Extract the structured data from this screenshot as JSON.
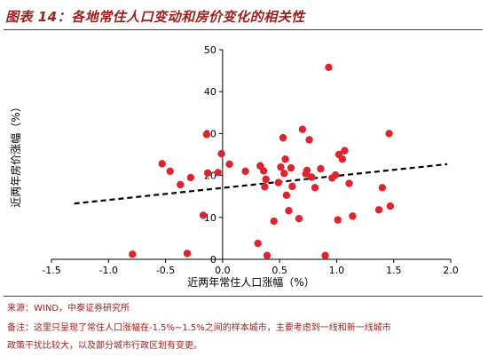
{
  "figure": {
    "title": "图表 14：各地常住人口变动和房价变化的相关性",
    "source": "来源：WIND，中泰证券研究所",
    "note_line1": "备注：这里只呈现了常住人口涨幅在-1.5%~1.5%之间的样本城市，主要考虑到一线和新一线城市",
    "note_line2": "政策干扰比较大，以及部分城市行政区划有变更。"
  },
  "colors": {
    "accent": "#a11e1e",
    "points": "#e0242f",
    "trendline": "#000000",
    "axis": "#000000"
  },
  "chart_data": {
    "type": "scatter",
    "title": "",
    "xlabel": "近两年常住人口涨幅（%）",
    "ylabel": "近两年房价涨幅（%）",
    "xlim": [
      -1.5,
      2.0
    ],
    "ylim": [
      0,
      50
    ],
    "xticks": [
      -1.5,
      -1.0,
      -0.5,
      0.0,
      0.5,
      1.0,
      1.5,
      2.0
    ],
    "xtick_labels": [
      "-1.5",
      "-1.0",
      "-0.5",
      "0.0",
      "0.5",
      "1.0",
      "1.5",
      "2.0"
    ],
    "yticks": [
      0,
      10,
      20,
      30,
      40,
      50
    ],
    "ytick_labels": [
      "0",
      "10",
      "20",
      "30",
      "40",
      "50"
    ],
    "grid": false,
    "legend": "none",
    "series": [
      {
        "points": [
          [
            -0.79,
            1.2
          ],
          [
            -0.53,
            22.8
          ],
          [
            -0.46,
            21.0
          ],
          [
            -0.37,
            17.8
          ],
          [
            -0.31,
            1.4
          ],
          [
            -0.28,
            19.5
          ],
          [
            -0.17,
            10.5
          ],
          [
            -0.14,
            29.8
          ],
          [
            -0.13,
            20.6
          ],
          [
            0.06,
            22.7
          ],
          [
            -0.04,
            20.7
          ],
          [
            -0.01,
            25.2
          ],
          [
            0.2,
            21.0
          ],
          [
            0.31,
            3.8
          ],
          [
            0.33,
            22.3
          ],
          [
            0.36,
            21.1
          ],
          [
            0.38,
            19.1
          ],
          [
            0.37,
            17.3
          ],
          [
            0.39,
            0.9
          ],
          [
            0.45,
            9.1
          ],
          [
            0.49,
            18.3
          ],
          [
            0.51,
            22.0
          ],
          [
            0.53,
            29.0
          ],
          [
            0.54,
            20.5
          ],
          [
            0.55,
            23.9
          ],
          [
            0.56,
            15.3
          ],
          [
            0.58,
            11.6
          ],
          [
            0.6,
            21.8
          ],
          [
            0.61,
            17.4
          ],
          [
            0.67,
            9.7
          ],
          [
            0.7,
            31.0
          ],
          [
            0.73,
            20.4
          ],
          [
            0.74,
            21.2
          ],
          [
            0.76,
            28.5
          ],
          [
            0.78,
            19.6
          ],
          [
            0.81,
            17.1
          ],
          [
            0.86,
            21.6
          ],
          [
            0.9,
            0.9
          ],
          [
            0.93,
            45.8
          ],
          [
            0.96,
            19.4
          ],
          [
            0.99,
            20.1
          ],
          [
            1.01,
            9.4
          ],
          [
            1.02,
            25.0
          ],
          [
            1.05,
            23.9
          ],
          [
            1.07,
            25.9
          ],
          [
            1.11,
            18.1
          ],
          [
            1.14,
            10.3
          ],
          [
            1.37,
            11.8
          ],
          [
            1.4,
            17.1
          ],
          [
            1.46,
            30.0
          ],
          [
            1.47,
            12.7
          ]
        ]
      }
    ],
    "trendline": {
      "style": "dashed",
      "x": [
        -1.3,
        1.97
      ],
      "y": [
        13.3,
        22.7
      ]
    }
  }
}
